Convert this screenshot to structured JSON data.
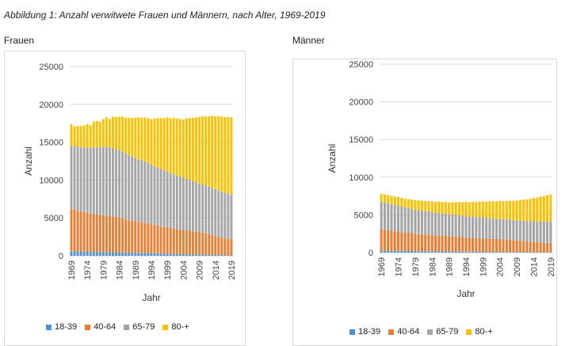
{
  "figure_title": "Abbildung 1: Anzahl verwitwete Frauen und Männern, nach Alter, 1969-2019",
  "chart_data": [
    {
      "type": "bar",
      "stacked": true,
      "panel_label": "Frauen",
      "xlabel": "Jahr",
      "ylabel": "Anzahl",
      "ylim": [
        0,
        25000
      ],
      "yticks": [
        "0",
        "5000",
        "10000",
        "15000",
        "20000",
        "25000"
      ],
      "xtick_labels": [
        "1969",
        "1974",
        "1979",
        "1984",
        "1989",
        "1994",
        "1999",
        "2004",
        "2009",
        "2014",
        "2019"
      ],
      "grid": true,
      "legend_position": "bottom",
      "years": [
        1969,
        1970,
        1971,
        1972,
        1973,
        1974,
        1975,
        1976,
        1977,
        1978,
        1979,
        1980,
        1981,
        1982,
        1983,
        1984,
        1985,
        1986,
        1987,
        1988,
        1989,
        1990,
        1991,
        1992,
        1993,
        1994,
        1995,
        1996,
        1997,
        1998,
        1999,
        2000,
        2001,
        2002,
        2003,
        2004,
        2005,
        2006,
        2007,
        2008,
        2009,
        2010,
        2011,
        2012,
        2013,
        2014,
        2015,
        2016,
        2017,
        2018,
        2019
      ],
      "series": [
        {
          "name": "18-39",
          "color": "#4f90cd",
          "values": [
            600,
            590,
            580,
            570,
            560,
            550,
            540,
            530,
            520,
            510,
            500,
            490,
            480,
            470,
            460,
            450,
            440,
            430,
            420,
            410,
            400,
            390,
            380,
            370,
            360,
            350,
            340,
            320,
            300,
            280,
            260,
            250,
            240,
            230,
            220,
            210,
            200,
            190,
            180,
            170,
            160,
            150,
            140,
            130,
            120,
            110,
            100,
            95,
            90,
            85,
            80
          ]
        },
        {
          "name": "40-64",
          "color": "#ed7d31",
          "values": [
            5600,
            5500,
            5400,
            5300,
            5200,
            5100,
            5000,
            5000,
            4950,
            4900,
            4850,
            4800,
            4750,
            4700,
            4650,
            4600,
            4550,
            4400,
            4300,
            4200,
            4150,
            4100,
            4050,
            4000,
            3900,
            3800,
            3700,
            3650,
            3600,
            3500,
            3450,
            3400,
            3350,
            3300,
            3250,
            3200,
            3150,
            3100,
            3050,
            3000,
            2950,
            2900,
            2800,
            2700,
            2600,
            2500,
            2400,
            2300,
            2200,
            2150,
            2100
          ]
        },
        {
          "name": "65-79",
          "color": "#a5a5a5",
          "values": [
            8300,
            8400,
            8450,
            8500,
            8550,
            8650,
            8700,
            8800,
            8850,
            8900,
            9000,
            9100,
            9050,
            9000,
            8950,
            8900,
            8800,
            8700,
            8600,
            8500,
            8400,
            8300,
            8200,
            8100,
            8000,
            7900,
            7800,
            7700,
            7600,
            7500,
            7400,
            7300,
            7200,
            7100,
            7000,
            6900,
            6800,
            6700,
            6600,
            6500,
            6400,
            6400,
            6350,
            6300,
            6250,
            6200,
            6150,
            6100,
            6050,
            6000,
            5900
          ]
        },
        {
          "name": "80-+",
          "color": "#ffc000",
          "values": [
            2900,
            2600,
            2700,
            2800,
            2900,
            3100,
            3000,
            3400,
            3500,
            3400,
            3700,
            3900,
            3800,
            4200,
            4300,
            4400,
            4600,
            4700,
            4900,
            5100,
            5300,
            5500,
            5600,
            5800,
            5900,
            6000,
            6300,
            6500,
            6700,
            6900,
            7200,
            7200,
            7400,
            7500,
            7600,
            7700,
            8000,
            8200,
            8400,
            8600,
            8800,
            9000,
            9100,
            9300,
            9500,
            9600,
            9800,
            9900,
            10000,
            10100,
            10200
          ]
        }
      ]
    },
    {
      "type": "bar",
      "stacked": true,
      "panel_label": "Männer",
      "xlabel": "Jahr",
      "ylabel": "Anzahl",
      "ylim": [
        0,
        25000
      ],
      "yticks": [
        "0",
        "5000",
        "10000",
        "15000",
        "20000",
        "25000"
      ],
      "xtick_labels": [
        "1969",
        "1974",
        "1979",
        "1984",
        "1989",
        "1994",
        "1999",
        "2004",
        "2009",
        "2014",
        "2019"
      ],
      "grid": true,
      "legend_position": "bottom",
      "years": [
        1969,
        1970,
        1971,
        1972,
        1973,
        1974,
        1975,
        1976,
        1977,
        1978,
        1979,
        1980,
        1981,
        1982,
        1983,
        1984,
        1985,
        1986,
        1987,
        1988,
        1989,
        1990,
        1991,
        1992,
        1993,
        1994,
        1995,
        1996,
        1997,
        1998,
        1999,
        2000,
        2001,
        2002,
        2003,
        2004,
        2005,
        2006,
        2007,
        2008,
        2009,
        2010,
        2011,
        2012,
        2013,
        2014,
        2015,
        2016,
        2017,
        2018,
        2019
      ],
      "series": [
        {
          "name": "18-39",
          "color": "#4f90cd",
          "values": [
            250,
            250,
            240,
            240,
            230,
            230,
            220,
            220,
            210,
            210,
            200,
            200,
            190,
            190,
            180,
            180,
            170,
            170,
            160,
            160,
            150,
            150,
            140,
            140,
            130,
            130,
            120,
            120,
            110,
            110,
            100,
            100,
            100,
            90,
            90,
            90,
            80,
            80,
            80,
            70,
            70,
            70,
            60,
            60,
            60,
            50,
            50,
            50,
            40,
            40,
            40
          ]
        },
        {
          "name": "40-64",
          "color": "#ed7d31",
          "values": [
            2800,
            2750,
            2700,
            2650,
            2600,
            2550,
            2500,
            2450,
            2400,
            2350,
            2300,
            2250,
            2250,
            2200,
            2200,
            2150,
            2100,
            2100,
            2050,
            2050,
            2000,
            2000,
            1950,
            1950,
            1900,
            1900,
            1850,
            1850,
            1800,
            1800,
            1800,
            1750,
            1750,
            1700,
            1700,
            1700,
            1650,
            1600,
            1600,
            1550,
            1500,
            1500,
            1450,
            1400,
            1400,
            1350,
            1300,
            1300,
            1250,
            1250,
            1200
          ]
        },
        {
          "name": "65-79",
          "color": "#a5a5a5",
          "values": [
            3700,
            3650,
            3600,
            3550,
            3500,
            3450,
            3400,
            3350,
            3300,
            3250,
            3200,
            3200,
            3150,
            3100,
            3100,
            3050,
            3000,
            3000,
            2950,
            2950,
            2900,
            2900,
            2900,
            2850,
            2850,
            2850,
            2800,
            2800,
            2800,
            2800,
            2750,
            2750,
            2750,
            2750,
            2700,
            2700,
            2700,
            2700,
            2700,
            2700,
            2700,
            2700,
            2700,
            2700,
            2700,
            2750,
            2750,
            2800,
            2800,
            2850,
            2850
          ]
        },
        {
          "name": "80-+",
          "color": "#ffc000",
          "values": [
            1050,
            1050,
            1100,
            1100,
            1100,
            1150,
            1150,
            1150,
            1200,
            1200,
            1250,
            1300,
            1300,
            1350,
            1350,
            1400,
            1450,
            1500,
            1550,
            1550,
            1600,
            1650,
            1700,
            1750,
            1800,
            1850,
            1900,
            1950,
            2000,
            2050,
            2100,
            2150,
            2200,
            2250,
            2300,
            2350,
            2400,
            2450,
            2500,
            2550,
            2600,
            2700,
            2800,
            2900,
            3000,
            3100,
            3200,
            3300,
            3400,
            3500,
            3600
          ]
        }
      ]
    }
  ]
}
